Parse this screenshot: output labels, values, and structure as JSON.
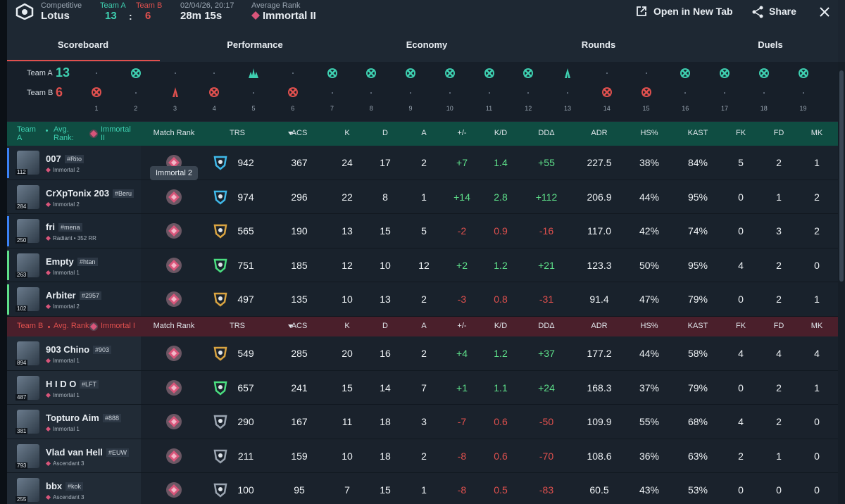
{
  "header": {
    "mode": "Competitive",
    "map": "Lotus",
    "team_a_label": "Team A",
    "team_a_score": "13",
    "separator": ":",
    "team_b_label": "Team B",
    "team_b_score": "6",
    "date": "02/04/26, 20:17",
    "duration": "28m 15s",
    "avg_rank_label": "Average Rank",
    "avg_rank": "Immortal II",
    "open_new_tab": "Open in New Tab",
    "share": "Share"
  },
  "tabs": [
    "Scoreboard",
    "Performance",
    "Economy",
    "Rounds",
    "Duels"
  ],
  "rounds": {
    "team_a_label": "Team A",
    "team_a_score": "13",
    "team_b_label": "Team B",
    "team_b_score": "6",
    "list": [
      {
        "n": 1,
        "winner": "b",
        "type": "elim"
      },
      {
        "n": 2,
        "winner": "a",
        "type": "elim"
      },
      {
        "n": 3,
        "winner": "b",
        "type": "detonate"
      },
      {
        "n": 4,
        "winner": "b",
        "type": "elim"
      },
      {
        "n": 5,
        "winner": "a",
        "type": "spike"
      },
      {
        "n": 6,
        "winner": "b",
        "type": "elim"
      },
      {
        "n": 7,
        "winner": "a",
        "type": "elim"
      },
      {
        "n": 8,
        "winner": "a",
        "type": "elim"
      },
      {
        "n": 9,
        "winner": "a",
        "type": "elim"
      },
      {
        "n": 10,
        "winner": "a",
        "type": "elim"
      },
      {
        "n": 11,
        "winner": "a",
        "type": "elim"
      },
      {
        "n": 12,
        "winner": "a",
        "type": "elim"
      },
      {
        "n": 13,
        "winner": "a",
        "type": "detonate"
      },
      {
        "n": 14,
        "winner": "b",
        "type": "elim"
      },
      {
        "n": 15,
        "winner": "b",
        "type": "elim"
      },
      {
        "n": 16,
        "winner": "a",
        "type": "elim"
      },
      {
        "n": 17,
        "winner": "a",
        "type": "elim"
      },
      {
        "n": 18,
        "winner": "a",
        "type": "elim"
      },
      {
        "n": 19,
        "winner": "a",
        "type": "elim"
      }
    ]
  },
  "teams": [
    {
      "label": "Team A",
      "avg_rank_label": "Avg. Rank:",
      "avg_rank": "Immortal II",
      "color": "#3ecfb0",
      "columns": [
        "Match Rank",
        "TRS",
        "ACS",
        "K",
        "D",
        "A",
        "+/-",
        "K/D",
        "DDΔ",
        "ADR",
        "HS%",
        "KAST",
        "FK",
        "FD",
        "MK"
      ],
      "players": [
        {
          "name": "007",
          "tag": "#Rito",
          "level": "112",
          "rank": "Immortal 2",
          "party_color": "#3b82f6",
          "trs_color": "#3fb8e8",
          "stats": [
            "942",
            "367",
            "24",
            "17",
            "2",
            "+7",
            "1.4",
            "+55",
            "227.5",
            "38%",
            "84%",
            "5",
            "2",
            "1"
          ]
        },
        {
          "name": "CrXpTonix 203",
          "tag": "#Beru",
          "level": "284",
          "rank": "Immortal 2",
          "trs_color": "#3fb8e8",
          "stats": [
            "974",
            "296",
            "22",
            "8",
            "1",
            "+14",
            "2.8",
            "+112",
            "206.9",
            "44%",
            "95%",
            "0",
            "1",
            "2"
          ]
        },
        {
          "name": "fri",
          "tag": "#mena",
          "level": "250",
          "rank": "Radiant • 352 RR",
          "party_color": "#3b82f6",
          "trs_color": "#d9a441",
          "stats": [
            "565",
            "190",
            "13",
            "15",
            "5",
            "-2",
            "0.9",
            "-16",
            "117.0",
            "42%",
            "74%",
            "0",
            "3",
            "2"
          ]
        },
        {
          "name": "Empty",
          "tag": "#htan",
          "level": "263",
          "rank": "Immortal 1",
          "party_color": "#5ee08a",
          "trs_color": "#4ade80",
          "stats": [
            "751",
            "185",
            "12",
            "10",
            "12",
            "+2",
            "1.2",
            "+21",
            "123.3",
            "50%",
            "95%",
            "4",
            "2",
            "0"
          ]
        },
        {
          "name": "Arbiter",
          "tag": "#2957",
          "level": "102",
          "rank": "Immortal 2",
          "party_color": "#5ee08a",
          "trs_color": "#d9a441",
          "stats": [
            "497",
            "135",
            "10",
            "13",
            "2",
            "-3",
            "0.8",
            "-31",
            "91.4",
            "47%",
            "79%",
            "0",
            "2",
            "1"
          ]
        }
      ]
    },
    {
      "label": "Team B",
      "avg_rank_label": "Avg. Rank:",
      "avg_rank": "Immortal I",
      "color": "#e0504e",
      "columns": [
        "Match Rank",
        "TRS",
        "ACS",
        "K",
        "D",
        "A",
        "+/-",
        "K/D",
        "DDΔ",
        "ADR",
        "HS%",
        "KAST",
        "FK",
        "FD",
        "MK"
      ],
      "players": [
        {
          "name": "903 Chino",
          "tag": "#903",
          "level": "894",
          "rank": "Immortal 1",
          "trs_color": "#d9a441",
          "stats": [
            "549",
            "285",
            "20",
            "16",
            "2",
            "+4",
            "1.2",
            "+37",
            "177.2",
            "44%",
            "58%",
            "4",
            "4",
            "4"
          ]
        },
        {
          "name": "H I D O",
          "tag": "#LFT",
          "level": "487",
          "rank": "Immortal 1",
          "trs_color": "#4ade80",
          "stats": [
            "657",
            "241",
            "15",
            "14",
            "7",
            "+1",
            "1.1",
            "+24",
            "168.3",
            "37%",
            "79%",
            "0",
            "2",
            "1"
          ]
        },
        {
          "name": "Topturo Aim",
          "tag": "#888",
          "level": "381",
          "rank": "Immortal 1",
          "trs_color": "#9aa4b0",
          "stats": [
            "290",
            "167",
            "11",
            "18",
            "3",
            "-7",
            "0.6",
            "-50",
            "109.9",
            "55%",
            "68%",
            "4",
            "2",
            "0"
          ]
        },
        {
          "name": "Vlad van Hell",
          "tag": "#EUW",
          "level": "793",
          "rank": "Ascendant 3",
          "trs_color": "#9aa4b0",
          "stats": [
            "211",
            "159",
            "10",
            "18",
            "2",
            "-8",
            "0.6",
            "-70",
            "108.6",
            "36%",
            "63%",
            "2",
            "1",
            "0"
          ]
        },
        {
          "name": "bbx",
          "tag": "#kok",
          "level": "255",
          "rank": "Ascendant 3",
          "trs_color": "#9aa4b0",
          "stats": [
            "100",
            "95",
            "7",
            "15",
            "1",
            "-8",
            "0.5",
            "-83",
            "60.5",
            "43%",
            "53%",
            "0",
            "0",
            "0"
          ]
        }
      ]
    }
  ],
  "tooltip": "Immortal 2"
}
